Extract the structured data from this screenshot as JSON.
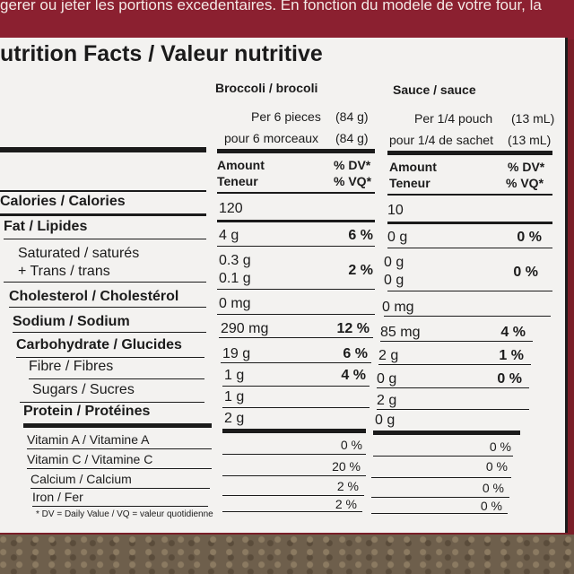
{
  "top_text": "gerer ou jeter les portions excedentaires.   En fonction du modele de votre four, la",
  "title": "utrition Facts / Valeur nutritive",
  "columns": [
    {
      "name": "Broccoli / brocoli",
      "serving_en": "Per 6 pieces",
      "serving_en_qty": "(84 g)",
      "serving_fr": "pour 6 morceaux",
      "serving_fr_qty": "(84 g)"
    },
    {
      "name": "Sauce / sauce",
      "serving_en": "Per 1/4 pouch",
      "serving_en_qty": "(13 mL)",
      "serving_fr": "pour 1/4 de sachet",
      "serving_fr_qty": "(13 mL)"
    }
  ],
  "amount_header": {
    "amount": "Amount",
    "teneur": "Teneur",
    "dv": "% DV*",
    "vq": "% VQ*"
  },
  "rows": [
    {
      "label": "Calories / Calories",
      "b": "120",
      "bp": "",
      "s": "10",
      "sp": ""
    },
    {
      "label": "Fat / Lipides",
      "b": "4 g",
      "bp": "6 %",
      "s": "0 g",
      "sp": "0 %"
    },
    {
      "label": "Saturated / saturés",
      "label2": "+ Trans / trans",
      "b": "0.3 g",
      "b2": "0.1 g",
      "bp": "2 %",
      "s": "0 g",
      "s2": "0 g",
      "sp": "0 %"
    },
    {
      "label": "Cholesterol / Cholestérol",
      "b": "0 mg",
      "bp": "",
      "s": "0 mg",
      "sp": ""
    },
    {
      "label": "Sodium / Sodium",
      "b": "290 mg",
      "bp": "12 %",
      "s": "85 mg",
      "sp": "4 %"
    },
    {
      "label": "Carbohydrate / Glucides",
      "b": "19 g",
      "bp": "6 %",
      "s": "2 g",
      "sp": "1 %"
    },
    {
      "label": "Fibre / Fibres",
      "b": "1 g",
      "bp": "4 %",
      "s": "0 g",
      "sp": "0 %"
    },
    {
      "label": "Sugars / Sucres",
      "b": "1 g",
      "bp": "",
      "s": "2 g",
      "sp": ""
    },
    {
      "label": "Protein / Protéines",
      "b": "2 g",
      "bp": "",
      "s": "0 g",
      "sp": ""
    }
  ],
  "vitamins": [
    {
      "label": "Vitamin A / Vitamine A",
      "b": "0 %",
      "s": "0 %"
    },
    {
      "label": "Vitamin C / Vitamine C",
      "b": "20 %",
      "s": "0 %"
    },
    {
      "label": "Calcium / Calcium",
      "b": "2 %",
      "s": "0 %"
    },
    {
      "label": "Iron / Fer",
      "b": "2 %",
      "s": "0 %"
    }
  ],
  "footnote": "* DV = Daily Value / VQ = valeur quotidienne"
}
